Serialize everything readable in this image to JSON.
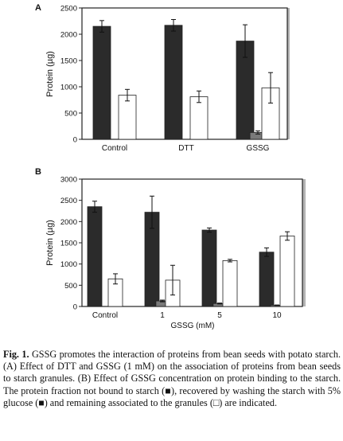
{
  "colors": {
    "bound_unwashed": "#2b2b2b",
    "washed_glucose": "#7a7a7a",
    "associated": "#ffffff",
    "frame": "#222222",
    "right_edge_shade": "#b4b4b4"
  },
  "chart_data": [
    {
      "type": "bar",
      "panel_label": "A",
      "categories": [
        "Control",
        "DTT",
        "GSSG"
      ],
      "ylabel": "Protein (µg)",
      "xlabel": "",
      "ylim": [
        0,
        2500
      ],
      "yticks": [
        0,
        500,
        1000,
        1500,
        2000,
        2500
      ],
      "grid": false,
      "series": [
        {
          "key": "not_bound",
          "values": [
            2150,
            2170,
            1870
          ],
          "errors": [
            110,
            110,
            310
          ]
        },
        {
          "key": "washed",
          "values": [
            0,
            0,
            130
          ],
          "errors": [
            0,
            0,
            30
          ]
        },
        {
          "key": "associated",
          "values": [
            840,
            810,
            980
          ],
          "errors": [
            110,
            110,
            290
          ]
        }
      ]
    },
    {
      "type": "bar",
      "panel_label": "B",
      "categories": [
        "Control",
        "1",
        "5",
        "10"
      ],
      "ylabel": "Protein (µg)",
      "xlabel": "GSSG (mM)",
      "ylim": [
        0,
        3000
      ],
      "yticks": [
        0,
        500,
        1000,
        1500,
        2000,
        2500,
        3000
      ],
      "grid": false,
      "series": [
        {
          "key": "not_bound",
          "values": [
            2350,
            2220,
            1800,
            1280
          ],
          "errors": [
            130,
            380,
            50,
            100
          ]
        },
        {
          "key": "washed",
          "values": [
            0,
            130,
            70,
            30
          ],
          "errors": [
            0,
            20,
            10,
            5
          ]
        },
        {
          "key": "associated",
          "values": [
            650,
            620,
            1080,
            1660
          ],
          "errors": [
            120,
            350,
            30,
            100
          ]
        }
      ]
    }
  ],
  "caption": {
    "label": "Fig. 1.",
    "text": "GSSG promotes the interaction of proteins from bean seeds with potato starch. (A) Effect of DTT and GSSG (1 mM) on the association of proteins from bean seeds to starch granules. (B) Effect of GSSG concentration on protein binding to the starch. The protein fraction not bound to starch (■), recovered by washing the starch with 5% glucose (■) and remaining associated to the granules (□) are indicated."
  }
}
